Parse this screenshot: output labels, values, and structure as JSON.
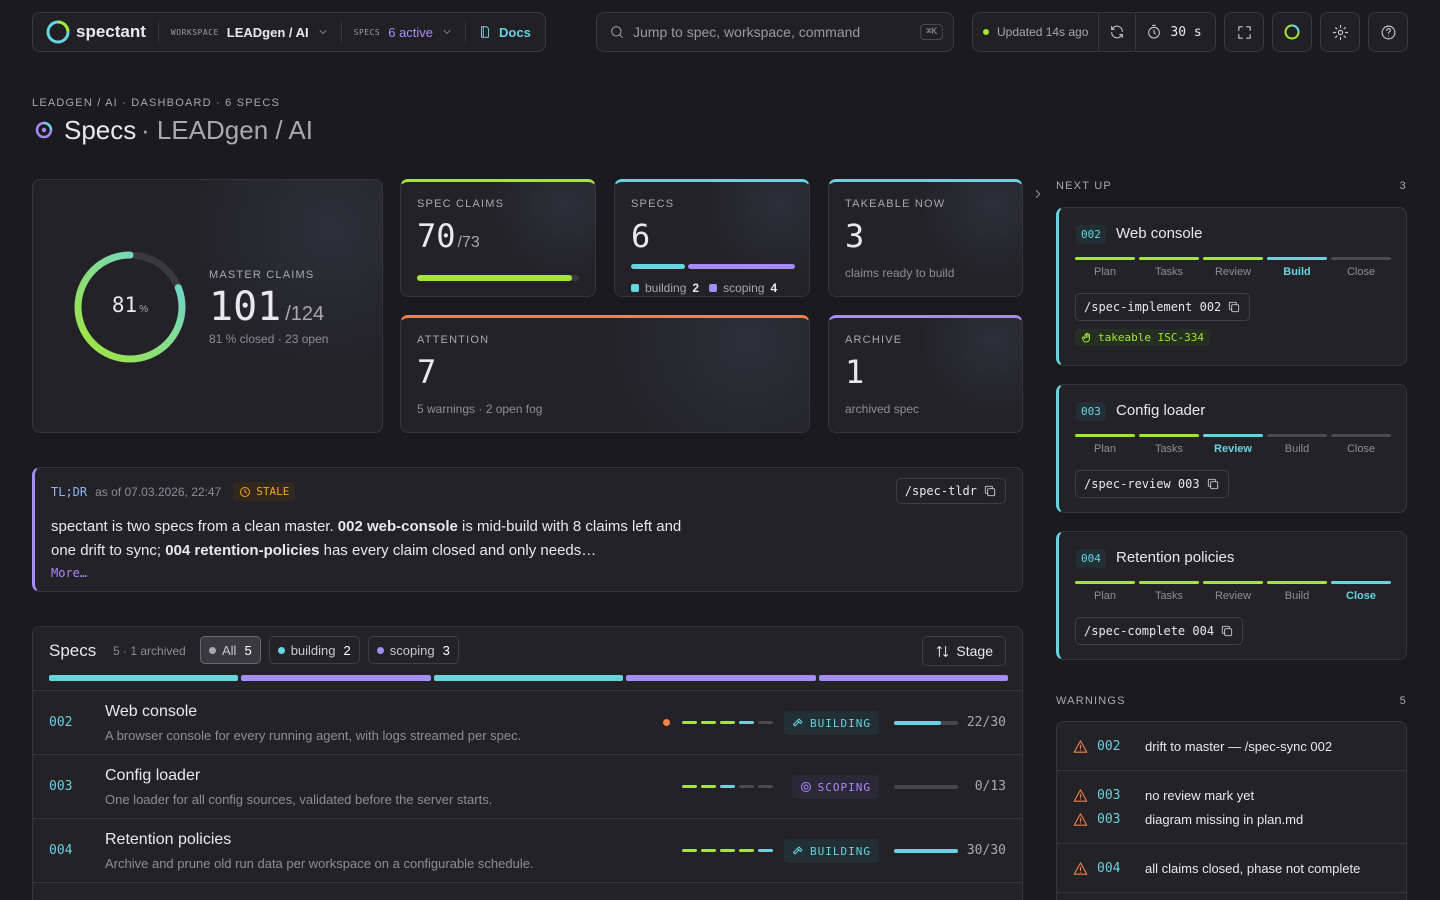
{
  "header": {
    "brand": "spectant",
    "workspace_label": "WORKSPACE",
    "workspace": "LEADgen / AI",
    "specs_label": "SPECS",
    "specs_active": "6 active",
    "docs": "Docs",
    "search": "Jump to spec, workspace, command",
    "shortcut": "⌘K",
    "updated": "Updated 14s ago",
    "refresh_interval": "30 s"
  },
  "breadcrumb": "LEADGEN / AI · DASHBOARD · 6 SPECS",
  "title": "Specs",
  "title_context": "· LEADgen / AI",
  "stats": {
    "master": {
      "label": "MASTER CLAIMS",
      "percent": 81,
      "percent_unit": "%",
      "value": "101",
      "total": "/124",
      "summary": "81 % closed · 23 open"
    },
    "spec_claims": {
      "label": "SPEC CLAIMS",
      "value": 70,
      "total": "/73",
      "color": "#a3e635"
    },
    "specs": {
      "label": "SPECS",
      "value": 6,
      "color": "#67d4e0",
      "breakdown": [
        {
          "name": "building",
          "count": 2,
          "color": "#67d4e0"
        },
        {
          "name": "scoping",
          "count": 4,
          "color": "#a78bfa"
        }
      ]
    },
    "takeable": {
      "label": "TAKEABLE NOW",
      "value": 3,
      "caption": "claims ready to build",
      "color": "#67d4e0"
    },
    "attention": {
      "label": "ATTENTION",
      "value": 7,
      "caption": "5 warnings · 2 open fog",
      "color": "#f0824a"
    },
    "archive": {
      "label": "ARCHIVE",
      "value": 1,
      "caption": "archived spec",
      "color": "#a78bfa"
    }
  },
  "tldr": {
    "label": "TL;DR",
    "as_of": "as of 07.03.2026, 22:47",
    "badge": "STALE",
    "command": "/spec-tldr",
    "text": [
      {
        "text": "spectant is two specs from a clean master. "
      },
      {
        "text": "002 web-console",
        "bold": true
      },
      {
        "text": " is mid-build with 8 claims left and one drift to sync; "
      },
      {
        "text": "004 retention-policies",
        "bold": true
      },
      {
        "text": " has every claim closed and only needs…"
      }
    ],
    "more": "More…"
  },
  "specs_panel": {
    "title": "Specs",
    "count": "5 · 1 archived",
    "sort": "Stage",
    "filters": [
      {
        "label": "All",
        "count": 5,
        "active": true
      },
      {
        "label": "building",
        "count": 2,
        "color": "#67d4e0"
      },
      {
        "label": "scoping",
        "count": 3,
        "color": "#a78bfa"
      }
    ],
    "segments": [
      "#67d4e0",
      "#a78bfa",
      "#67d4e0",
      "#a78bfa",
      "#a78bfa"
    ],
    "rows": [
      {
        "id": "002",
        "title": "Web console",
        "description": "A browser console for every running agent, with logs streamed per spec.",
        "drift": true,
        "phase": 3,
        "status": "BUILDING",
        "progress": "22/30"
      },
      {
        "id": "003",
        "title": "Config loader",
        "description": "One loader for all config sources, validated before the server starts.",
        "drift": false,
        "phase": 2,
        "status": "SCOPING",
        "progress": "0/13"
      },
      {
        "id": "004",
        "title": "Retention policies",
        "description": "Archive and prune old run data per workspace on a configurable schedule.",
        "drift": false,
        "phase": 4,
        "status": "BUILDING",
        "progress": "30/30"
      }
    ]
  },
  "next_up": {
    "label": "NEXT UP",
    "count": 3,
    "phases": [
      "Plan",
      "Tasks",
      "Review",
      "Build",
      "Close"
    ],
    "cards": [
      {
        "id": "002",
        "title": "Web console",
        "phase": 3,
        "command": "/spec-implement 002",
        "takeable": "takeable ISC-334"
      },
      {
        "id": "003",
        "title": "Config loader",
        "phase": 2,
        "command": "/spec-review 003"
      },
      {
        "id": "004",
        "title": "Retention policies",
        "phase": 4,
        "command": "/spec-complete 004"
      }
    ]
  },
  "warnings": {
    "label": "WARNINGS",
    "count": 5,
    "groups": [
      [
        {
          "id": "002",
          "text": "drift to master — /spec-sync 002"
        }
      ],
      [
        {
          "id": "003",
          "text": "no review mark yet"
        },
        {
          "id": "003",
          "text": "diagram missing in plan.md"
        }
      ],
      [
        {
          "id": "004",
          "text": "all claims closed, phase not complete"
        }
      ]
    ]
  }
}
